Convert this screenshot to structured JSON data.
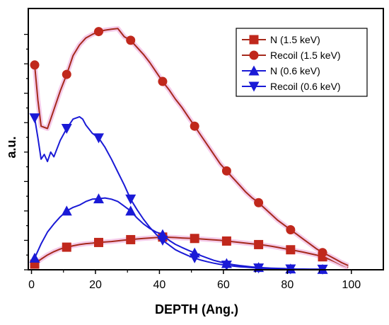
{
  "chart_data": {
    "type": "line",
    "xlabel": "DEPTH (Ang.)",
    "ylabel": "a.u.",
    "xlim": [
      -1,
      110
    ],
    "ylim": [
      0,
      1.11
    ],
    "x_ticks": [
      0,
      20,
      40,
      60,
      80,
      100
    ],
    "y_ticks_unlabeled": true,
    "grid": false,
    "legend_position": "top-right",
    "series": [
      {
        "name": "N (1.5 keV)",
        "color": "#c0281c",
        "line_color": "#a52a1c",
        "marker": "square",
        "x": [
          1,
          3,
          5,
          7,
          9,
          11,
          13,
          15,
          17,
          19,
          21,
          23,
          25,
          27,
          29,
          31,
          33,
          35,
          37,
          39,
          41,
          43,
          45,
          47,
          49,
          51,
          53,
          55,
          57,
          59,
          61,
          63,
          65,
          67,
          69,
          71,
          73,
          75,
          77,
          79,
          81,
          83,
          85,
          87,
          89,
          91,
          93,
          95,
          97,
          99
        ],
        "values": [
          0.024,
          0.045,
          0.063,
          0.077,
          0.088,
          0.096,
          0.102,
          0.107,
          0.111,
          0.113,
          0.116,
          0.118,
          0.12,
          0.123,
          0.126,
          0.128,
          0.131,
          0.133,
          0.135,
          0.137,
          0.139,
          0.138,
          0.137,
          0.135,
          0.134,
          0.133,
          0.131,
          0.129,
          0.127,
          0.125,
          0.122,
          0.119,
          0.116,
          0.113,
          0.11,
          0.107,
          0.104,
          0.1,
          0.095,
          0.09,
          0.085,
          0.08,
          0.075,
          0.069,
          0.063,
          0.055,
          0.045,
          0.033,
          0.02,
          0.01
        ],
        "marker_x": [
          1,
          11,
          21,
          31,
          41,
          51,
          61,
          71,
          81,
          91
        ],
        "marker_values": [
          0.024,
          0.096,
          0.116,
          0.128,
          0.139,
          0.133,
          0.122,
          0.107,
          0.085,
          0.055
        ]
      },
      {
        "name": "Recoil (1.5 keV)",
        "color": "#c0281c",
        "line_color": "#a52a1c",
        "marker": "circle",
        "x": [
          1,
          2,
          3,
          5,
          7,
          9,
          11,
          13,
          15,
          17,
          19,
          21,
          23,
          25,
          27,
          29,
          31,
          33,
          35,
          37,
          39,
          41,
          43,
          45,
          47,
          49,
          51,
          53,
          55,
          57,
          59,
          61,
          63,
          65,
          67,
          69,
          71,
          73,
          75,
          77,
          79,
          81,
          83,
          85,
          87,
          89,
          91,
          93,
          95,
          97,
          99
        ],
        "values": [
          0.87,
          0.72,
          0.61,
          0.6,
          0.68,
          0.76,
          0.83,
          0.91,
          0.955,
          0.985,
          1.0,
          1.012,
          1.018,
          1.022,
          1.025,
          0.99,
          0.975,
          0.945,
          0.915,
          0.88,
          0.84,
          0.8,
          0.765,
          0.725,
          0.69,
          0.65,
          0.61,
          0.57,
          0.53,
          0.49,
          0.45,
          0.42,
          0.39,
          0.36,
          0.33,
          0.305,
          0.285,
          0.26,
          0.235,
          0.21,
          0.19,
          0.17,
          0.15,
          0.13,
          0.11,
          0.09,
          0.073,
          0.06,
          0.045,
          0.03,
          0.018
        ],
        "marker_x": [
          1,
          11,
          21,
          31,
          41,
          51,
          61,
          71,
          81,
          91
        ],
        "marker_values": [
          0.87,
          0.83,
          1.012,
          0.975,
          0.8,
          0.61,
          0.42,
          0.285,
          0.17,
          0.073
        ]
      },
      {
        "name": "N (0.6 keV)",
        "color": "#1a1ad6",
        "line_color": "#1a1ad6",
        "marker": "triangle-up",
        "x": [
          1,
          3,
          5,
          7,
          9,
          11,
          13,
          15,
          17,
          19,
          21,
          23,
          25,
          27,
          29,
          31,
          33,
          35,
          37,
          39,
          41,
          43,
          45,
          47,
          49,
          51,
          53,
          55,
          57,
          59,
          61,
          63,
          65,
          67,
          69,
          71,
          73,
          75,
          77,
          79,
          81,
          83,
          85,
          87,
          89,
          91
        ],
        "values": [
          0.05,
          0.11,
          0.16,
          0.195,
          0.225,
          0.25,
          0.265,
          0.275,
          0.29,
          0.3,
          0.302,
          0.305,
          0.3,
          0.29,
          0.27,
          0.25,
          0.22,
          0.195,
          0.175,
          0.16,
          0.15,
          0.125,
          0.108,
          0.095,
          0.083,
          0.072,
          0.06,
          0.05,
          0.04,
          0.033,
          0.027,
          0.022,
          0.018,
          0.015,
          0.012,
          0.01,
          0.008,
          0.007,
          0.006,
          0.005,
          0.004,
          0.003,
          0.003,
          0.002,
          0.002,
          0.002
        ],
        "marker_x": [
          1,
          11,
          21,
          31,
          41,
          51,
          61,
          71,
          81,
          91
        ],
        "marker_values": [
          0.05,
          0.25,
          0.302,
          0.25,
          0.15,
          0.072,
          0.027,
          0.01,
          0.004,
          0.002
        ]
      },
      {
        "name": "Recoil (0.6 keV)",
        "color": "#1a1ad6",
        "line_color": "#1a1ad6",
        "marker": "triangle-down",
        "x": [
          1,
          2,
          3,
          4,
          5,
          6,
          7,
          9,
          11,
          13,
          15,
          16,
          17,
          19,
          21,
          23,
          25,
          27,
          29,
          31,
          33,
          35,
          37,
          39,
          41,
          43,
          45,
          47,
          49,
          51,
          53,
          55,
          57,
          59,
          61,
          63,
          65,
          67,
          69,
          71,
          73,
          75,
          77,
          79,
          81,
          83,
          85,
          87,
          89,
          91
        ],
        "values": [
          0.645,
          0.56,
          0.47,
          0.49,
          0.46,
          0.5,
          0.48,
          0.55,
          0.6,
          0.64,
          0.65,
          0.64,
          0.615,
          0.58,
          0.56,
          0.52,
          0.47,
          0.415,
          0.36,
          0.3,
          0.255,
          0.215,
          0.18,
          0.15,
          0.125,
          0.105,
          0.085,
          0.072,
          0.06,
          0.05,
          0.041,
          0.034,
          0.028,
          0.023,
          0.019,
          0.016,
          0.013,
          0.011,
          0.009,
          0.007,
          0.006,
          0.005,
          0.004,
          0.004,
          0.003,
          0.003,
          0.002,
          0.002,
          0.002,
          0.002
        ],
        "marker_x": [
          1,
          11,
          21,
          31,
          41,
          51,
          61,
          71,
          81,
          91
        ],
        "marker_values": [
          0.645,
          0.6,
          0.56,
          0.3,
          0.125,
          0.05,
          0.019,
          0.007,
          0.003,
          0.002
        ]
      }
    ]
  }
}
